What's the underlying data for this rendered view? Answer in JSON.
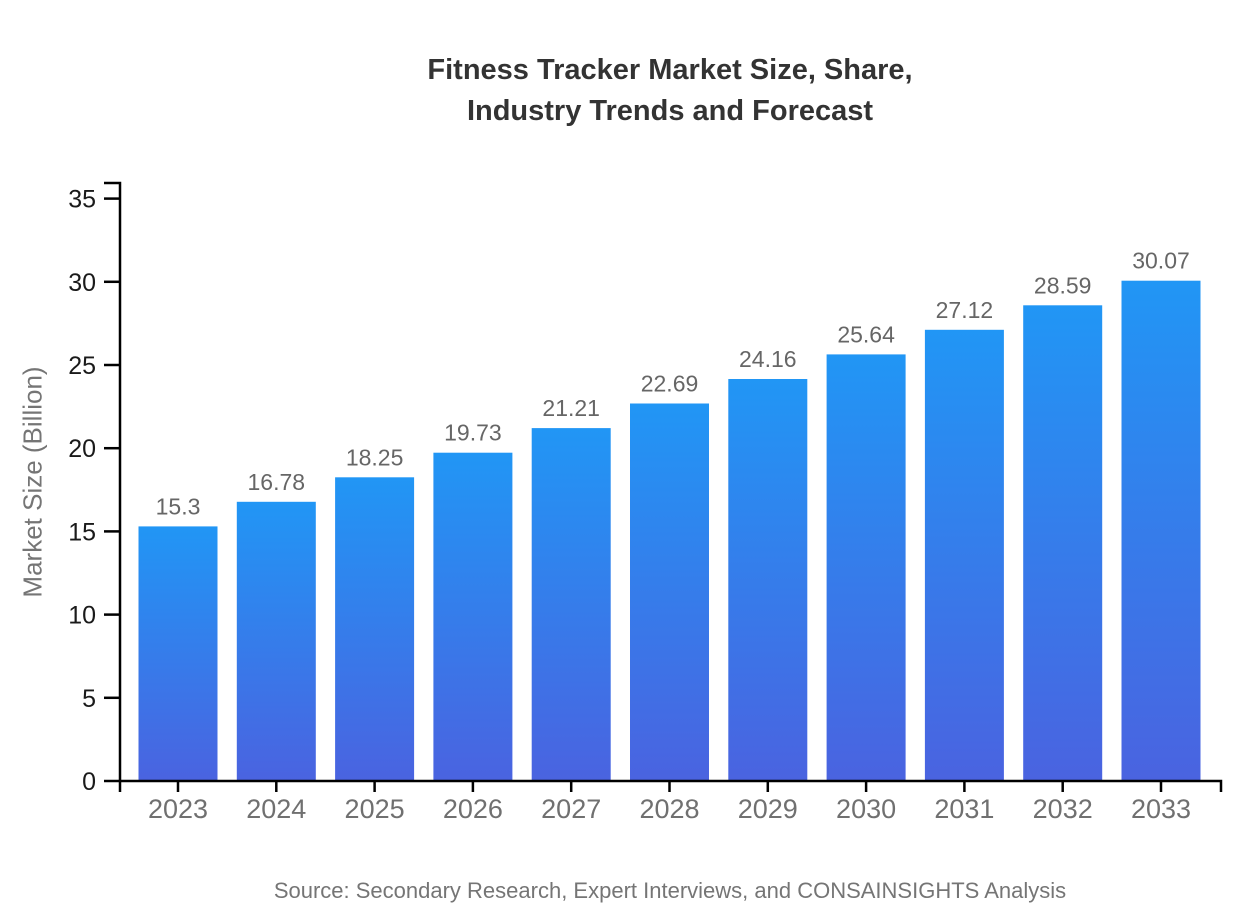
{
  "title": {
    "line1": "Fitness Tracker Market Size, Share,",
    "line2": "Industry Trends and Forecast"
  },
  "y_axis_title": "Market Size (Billion)",
  "source_note": "Source: Secondary Research, Expert Interviews, and CONSAINSIGHTS Analysis",
  "colors": {
    "background": "#ffffff",
    "bar_gradient_top": "#2196f5",
    "bar_gradient_bottom": "#4a63e0",
    "axis_line": "#000000",
    "y_tick_text": "#1a1a1a",
    "x_tick_text": "#707070",
    "value_label_text": "#666666",
    "title_text": "#333333",
    "muted_text": "#757575"
  },
  "chart_data": {
    "type": "bar",
    "title": "Fitness Tracker Market Size, Share, Industry Trends and Forecast",
    "categories": [
      "2023",
      "2024",
      "2025",
      "2026",
      "2027",
      "2028",
      "2029",
      "2030",
      "2031",
      "2032",
      "2033"
    ],
    "values": [
      15.3,
      16.78,
      18.25,
      19.73,
      21.21,
      22.69,
      24.16,
      25.64,
      27.12,
      28.59,
      30.07
    ],
    "value_labels": [
      "15.3",
      "16.78",
      "18.25",
      "19.73",
      "21.21",
      "22.69",
      "24.16",
      "25.64",
      "27.12",
      "28.59",
      "30.07"
    ],
    "xlabel": "",
    "ylabel": "Market Size (Billion)",
    "ylim": [
      0,
      36
    ],
    "yticks": [
      0,
      5,
      10,
      15,
      20,
      25,
      30,
      35
    ],
    "grid": false,
    "legend": false,
    "bar_color": "gradient #2196f5 to #4a63e0",
    "source": "Source: Secondary Research, Expert Interviews, and CONSAINSIGHTS Analysis"
  }
}
